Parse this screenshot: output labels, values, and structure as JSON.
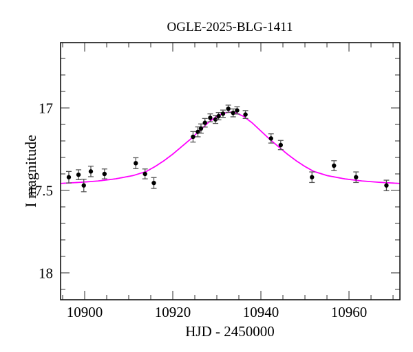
{
  "chart_data": {
    "type": "scatter",
    "title": "OGLE-2025-BLG-1411",
    "xlabel": "HJD - 2450000",
    "ylabel": "I magnitude",
    "x_axis": {
      "range": [
        10894.53,
        10971.56
      ],
      "major_ticks": [
        10900,
        10920,
        10940,
        10960
      ],
      "tick_labels": [
        "10900",
        "10920",
        "10940",
        "10960"
      ],
      "minor_step": 5,
      "minor_start": 10895,
      "minor_end": 10970
    },
    "y_axis": {
      "inverted": true,
      "range_top_bottom": [
        16.604,
        18.163
      ],
      "major_ticks": [
        17,
        17.5,
        18
      ],
      "tick_labels": [
        "17",
        "17.5",
        "18"
      ],
      "minor_step": 0.1,
      "minor_start": 16.7,
      "minor_end": 18.1
    },
    "series": [
      {
        "name": "microlensing-model-curve",
        "type": "line",
        "color": "#ff00ff",
        "t0": 10933,
        "half_profile_dt": [
          0,
          1.5,
          3,
          5,
          7,
          9,
          11,
          13,
          15,
          17,
          19,
          22,
          26,
          30,
          34,
          38.6
        ],
        "half_profile_mag": [
          17.025,
          17.032,
          17.05,
          17.09,
          17.14,
          17.19,
          17.235,
          17.28,
          17.32,
          17.355,
          17.385,
          17.41,
          17.43,
          17.443,
          17.451,
          17.458
        ]
      },
      {
        "name": "photometry-points",
        "type": "scatter-errorbar",
        "marker_color": "#000000",
        "errorbar_color": "#555555",
        "points_t_mag_err": [
          [
            10896.4,
            17.42,
            0.035
          ],
          [
            10898.6,
            17.405,
            0.03
          ],
          [
            10899.8,
            17.47,
            0.038
          ],
          [
            10901.4,
            17.385,
            0.032
          ],
          [
            10904.5,
            17.4,
            0.03
          ],
          [
            10911.6,
            17.335,
            0.033
          ],
          [
            10913.7,
            17.4,
            0.03
          ],
          [
            10915.7,
            17.455,
            0.033
          ],
          [
            10924.6,
            17.175,
            0.032
          ],
          [
            10925.7,
            17.145,
            0.03
          ],
          [
            10926.4,
            17.125,
            0.028
          ],
          [
            10927.3,
            17.09,
            0.026
          ],
          [
            10928.5,
            17.06,
            0.024
          ],
          [
            10929.7,
            17.07,
            0.024
          ],
          [
            10930.4,
            17.05,
            0.022
          ],
          [
            10931.4,
            17.035,
            0.022
          ],
          [
            10932.6,
            17.005,
            0.022
          ],
          [
            10933.7,
            17.03,
            0.024
          ],
          [
            10934.6,
            17.015,
            0.022
          ],
          [
            10936.5,
            17.04,
            0.024
          ],
          [
            10942.3,
            17.185,
            0.028
          ],
          [
            10944.5,
            17.225,
            0.028
          ],
          [
            10951.6,
            17.42,
            0.032
          ],
          [
            10956.6,
            17.35,
            0.03
          ],
          [
            10961.6,
            17.42,
            0.032
          ],
          [
            10968.5,
            17.47,
            0.032
          ]
        ]
      }
    ],
    "style": {
      "frame_color": "#111111",
      "tick_color": "#555555",
      "background": "#ffffff"
    }
  }
}
